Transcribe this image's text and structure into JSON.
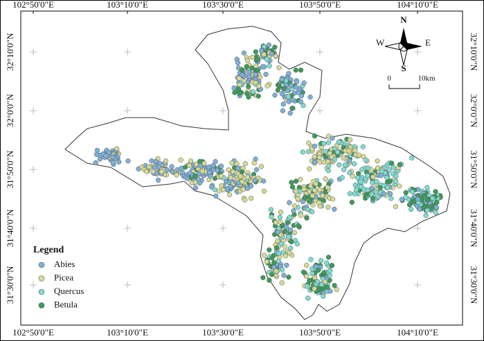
{
  "lon_labels": [
    "102°50'0\"E",
    "103°10'0\"E",
    "103°30'0\"E",
    "103°50'0\"E",
    "104°10'0\"E"
  ],
  "lat_labels": [
    "32°10'0\"N",
    "32°0'0\"N",
    "31°50'0\"N",
    "31°40'0\"N",
    "31°30'0\"N"
  ],
  "legend": {
    "title": "Legend",
    "items": [
      {
        "label": "Abies",
        "color": "#7fb0d8"
      },
      {
        "label": "Picea",
        "color": "#d6da98"
      },
      {
        "label": "Quercus",
        "color": "#7fdcd2"
      },
      {
        "label": "Betula",
        "color": "#3d9b5c"
      }
    ]
  },
  "compass": {
    "north": "N",
    "south": "S",
    "east": "E",
    "west": "W"
  },
  "scale_bar": {
    "start": "0",
    "end": "10km"
  }
}
